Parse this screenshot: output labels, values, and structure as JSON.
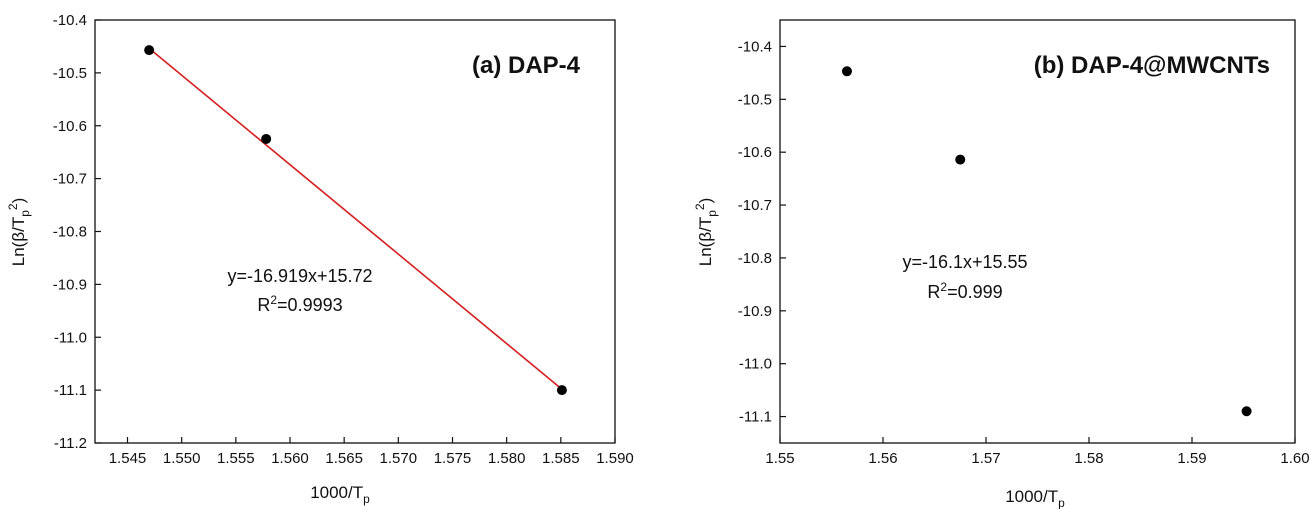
{
  "chart_data": [
    {
      "type": "scatter",
      "title": "(a) DAP-4",
      "xlabel": {
        "main": "1000/T",
        "sub": "p"
      },
      "ylabel": {
        "pre": "Ln(β/T",
        "sub": "p",
        "sup": "2",
        "post": ")"
      },
      "xlim": [
        1.542,
        1.59
      ],
      "ylim": [
        -11.2,
        -10.4
      ],
      "xticks": [
        1.545,
        1.55,
        1.555,
        1.56,
        1.565,
        1.57,
        1.575,
        1.58,
        1.585,
        1.59
      ],
      "xtick_labels": [
        "1.545",
        "1.550",
        "1.555",
        "1.560",
        "1.565",
        "1.570",
        "1.575",
        "1.580",
        "1.585",
        "1.590"
      ],
      "yticks": [
        -10.4,
        -10.5,
        -10.6,
        -10.7,
        -10.8,
        -10.9,
        -11.0,
        -11.1,
        -11.2
      ],
      "ytick_labels": [
        "-10.4",
        "-10.5",
        "-10.6",
        "-10.7",
        "-10.8",
        "-10.9",
        "-11.0",
        "-11.1",
        "-11.2"
      ],
      "points": {
        "x": [
          1.547,
          1.5578,
          1.5851
        ],
        "y": [
          -10.457,
          -10.625,
          -11.1
        ]
      },
      "fit": {
        "slope": -16.919,
        "intercept": 15.72,
        "x_range": [
          1.547,
          1.585
        ]
      },
      "equation": "y=-16.919x+15.72",
      "r2": {
        "pre": "R",
        "sup": "2",
        "post": "=0.9993"
      },
      "marker_color": "#000000",
      "line_color": "#d42020",
      "grid": false
    },
    {
      "type": "scatter",
      "title": "(b) DAP-4@MWCNTs",
      "xlabel": {
        "main": "1000/T",
        "sub": "p"
      },
      "ylabel": {
        "pre": "Ln(β/T",
        "sub": "p",
        "sup": "2",
        "post": ")"
      },
      "xlim": [
        1.55,
        1.6
      ],
      "ylim": [
        -11.15,
        -10.35
      ],
      "xticks": [
        1.55,
        1.56,
        1.57,
        1.58,
        1.59,
        1.6
      ],
      "xtick_labels": [
        "1.55",
        "1.56",
        "1.57",
        "1.58",
        "1.59",
        "1.60"
      ],
      "yticks": [
        -10.4,
        -10.5,
        -10.6,
        -10.7,
        -10.8,
        -10.9,
        -11.0,
        -11.1
      ],
      "ytick_labels": [
        "-10.4",
        "-10.5",
        "-10.6",
        "-10.7",
        "-10.8",
        "-10.9",
        "-11.0",
        "-11.1"
      ],
      "points": {
        "x": [
          1.5565,
          1.5675,
          1.5953
        ],
        "y": [
          -10.447,
          -10.614,
          -11.09
        ]
      },
      "fit": {
        "slope": -16.1,
        "intercept": 15.55,
        "x_range": [
          1.5565,
          1.5953
        ]
      },
      "equation": "y=-16.1x+15.55",
      "r2": {
        "pre": "R",
        "sup": "2",
        "post": "=0.999"
      },
      "marker_color": "#000000",
      "line_color": "#d42020",
      "grid": false
    }
  ]
}
